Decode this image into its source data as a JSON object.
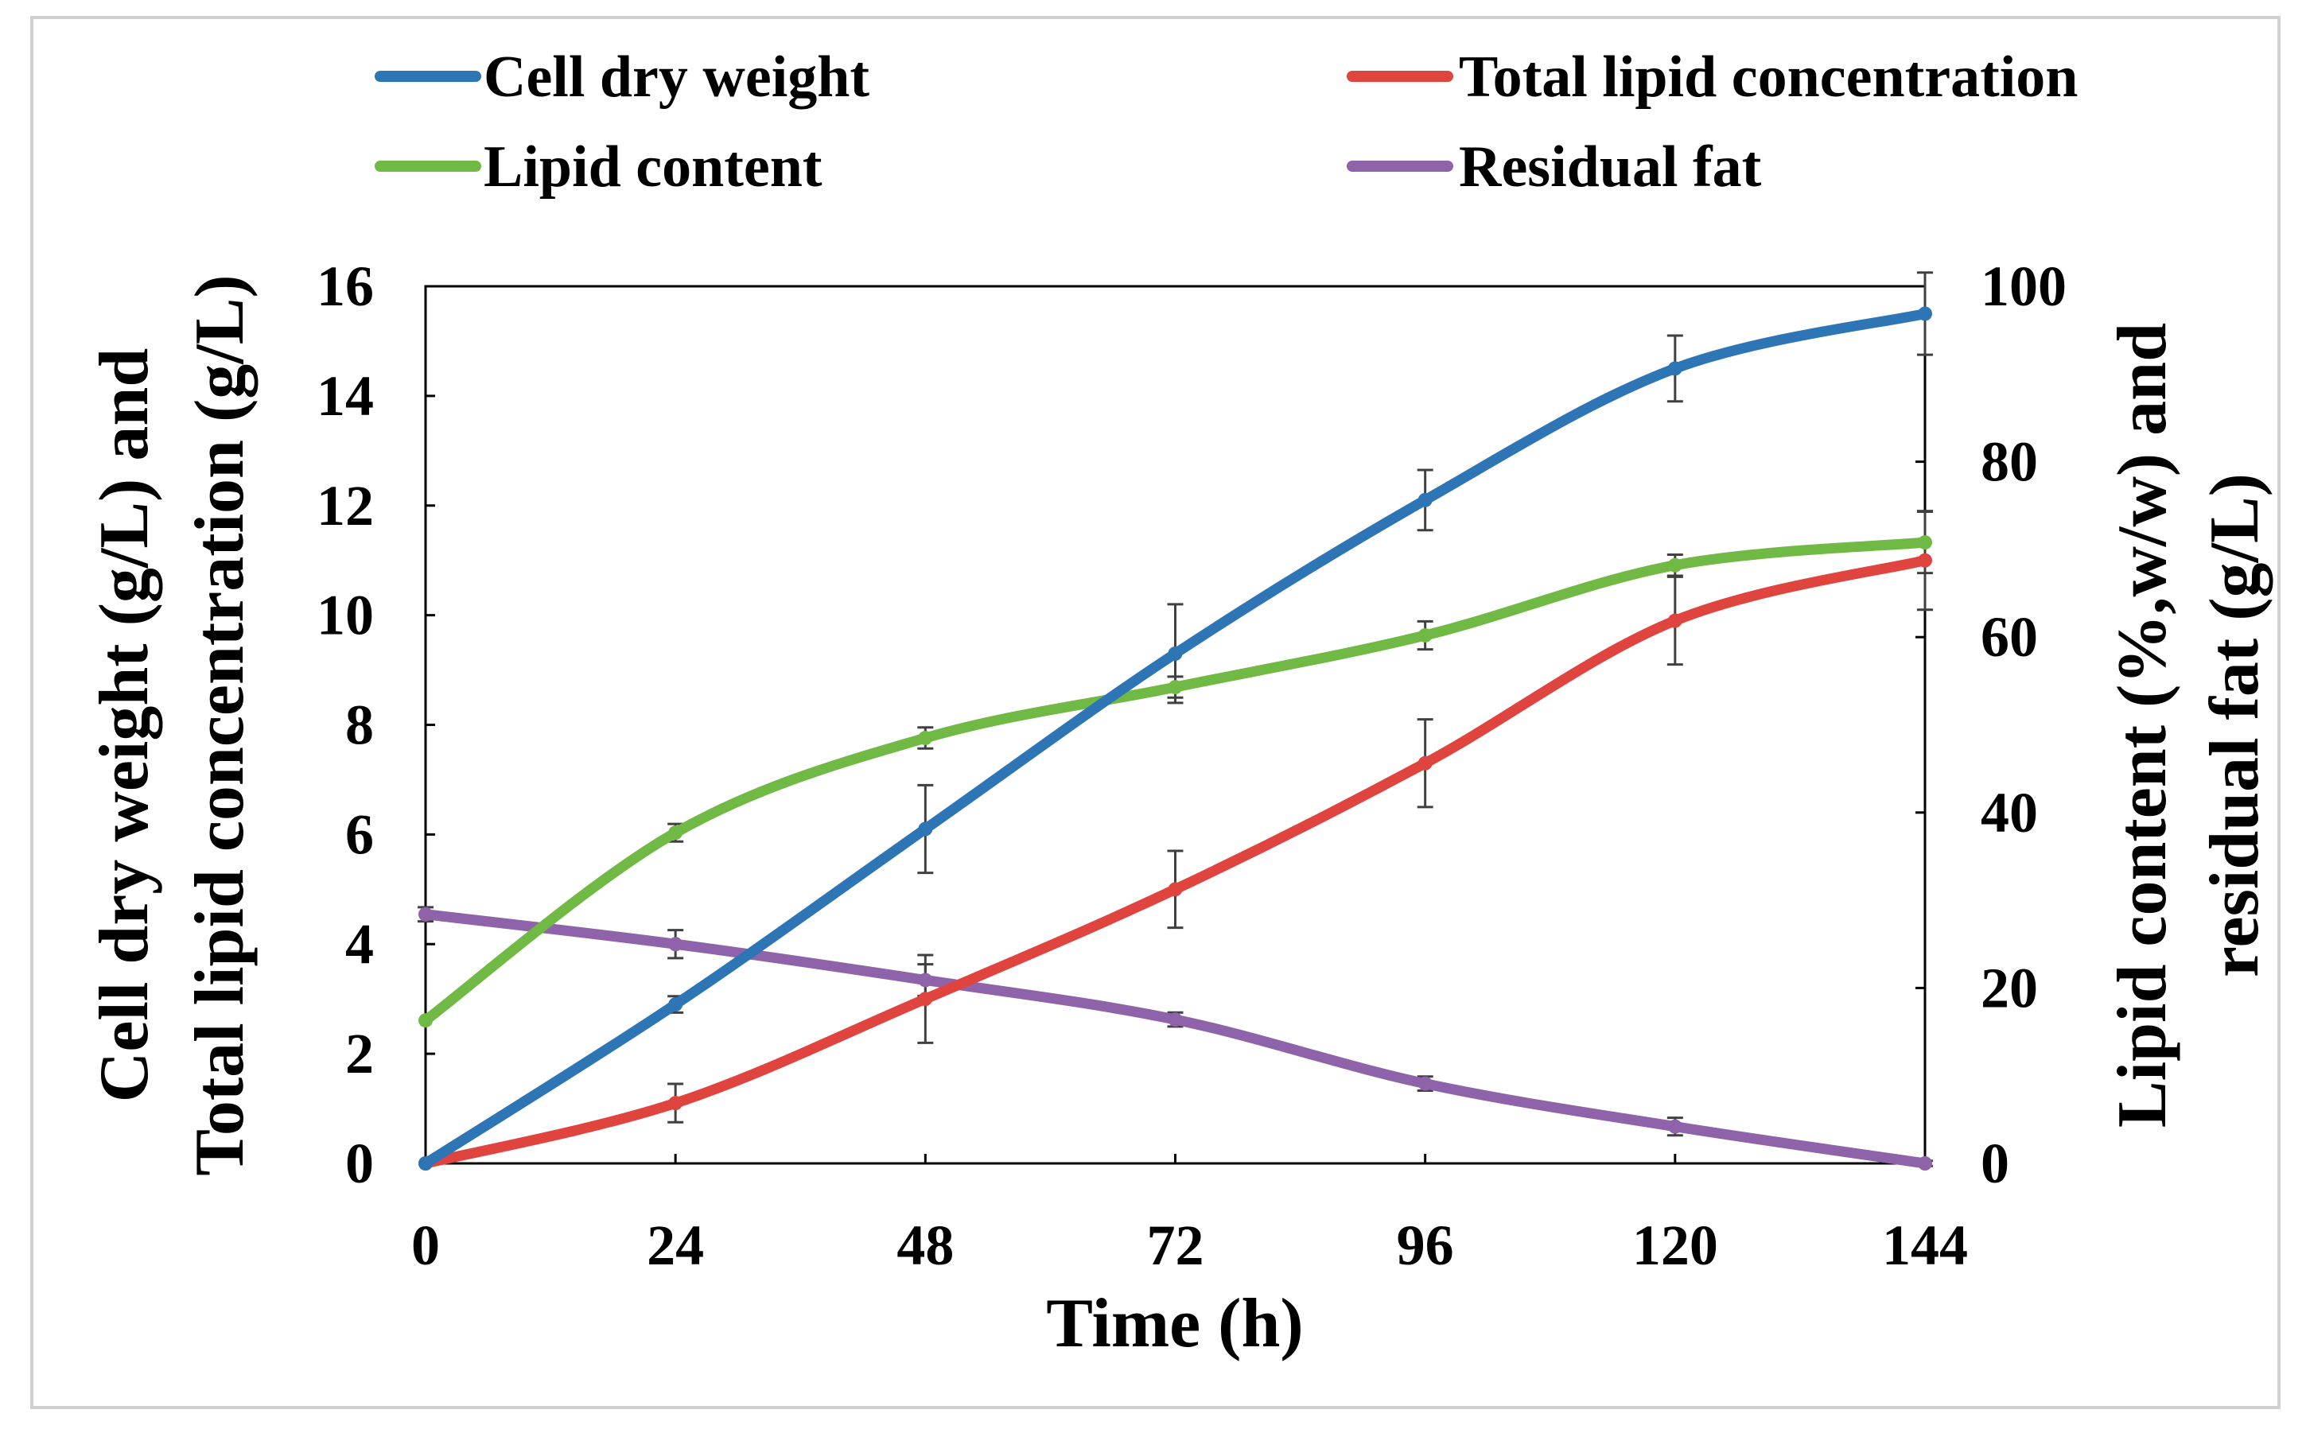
{
  "chart_data": {
    "type": "line",
    "title": "",
    "xlabel": "Time (h)",
    "ylabel_left": [
      "Cell dry weight (g/L) and",
      "Total lipid concentration (g/L)"
    ],
    "ylabel_right": [
      "Lipid content (%,w/w) and",
      "residual fat (g/L)"
    ],
    "x": [
      0,
      24,
      48,
      72,
      96,
      120,
      144
    ],
    "x_ticks": [
      0,
      24,
      48,
      72,
      96,
      120,
      144
    ],
    "xlim": [
      0,
      144
    ],
    "ylim_left": [
      0,
      16
    ],
    "y_ticks_left": [
      0,
      2,
      4,
      6,
      8,
      10,
      12,
      14,
      16
    ],
    "ylim_right": [
      0,
      100
    ],
    "y_ticks_right": [
      0,
      20,
      40,
      60,
      80,
      100
    ],
    "grid": false,
    "legend_position": "top",
    "series": [
      {
        "name": "Cell dry weight",
        "axis": "left",
        "color": "#2E75B6",
        "values": [
          0,
          2.9,
          6.1,
          9.3,
          12.1,
          14.5,
          15.5
        ],
        "errors": [
          0,
          0.15,
          0.8,
          0.9,
          0.55,
          0.6,
          0.75
        ]
      },
      {
        "name": "Total lipid concentration",
        "axis": "left",
        "color": "#E0443E",
        "values": [
          0,
          1.1,
          3.0,
          5.0,
          7.3,
          9.9,
          11.0
        ],
        "errors": [
          0,
          0.35,
          0.8,
          0.7,
          0.8,
          0.8,
          0.9
        ]
      },
      {
        "name": "Lipid content",
        "axis": "right",
        "color": "#70B945",
        "values": [
          16.3,
          37.7,
          48.5,
          54.3,
          60.2,
          68.2,
          70.8
        ],
        "errors": [
          0,
          1.0,
          1.2,
          1.2,
          1.6,
          1.2,
          3.5
        ]
      },
      {
        "name": "Residual fat",
        "axis": "right",
        "color": "#8E63AA",
        "values": [
          28.4,
          25.0,
          20.9,
          16.4,
          9.1,
          4.2,
          0.0
        ],
        "errors": [
          0.8,
          1.6,
          1.8,
          0.8,
          0.8,
          1.0,
          0.3
        ]
      }
    ]
  }
}
